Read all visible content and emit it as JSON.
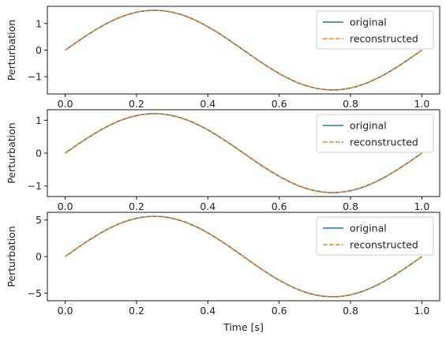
{
  "chart_data": [
    {
      "type": "line",
      "ylabel": "Perturbation",
      "xlabel": "",
      "amplitude": 1.5,
      "xlim": [
        -0.05,
        1.05
      ],
      "ylim": [
        -1.65,
        1.65
      ],
      "xticks": [
        0.0,
        0.2,
        0.4,
        0.6,
        0.8,
        1.0
      ],
      "xtick_labels": [
        "0.0",
        "0.2",
        "0.4",
        "0.6",
        "0.8",
        "1.0"
      ],
      "yticks": [
        -1,
        0,
        1
      ],
      "ytick_labels": [
        "−1",
        "0",
        "1"
      ],
      "legend_position": "top-right",
      "series": [
        {
          "name": "original",
          "style": "solid",
          "color": "#1f77b4"
        },
        {
          "name": "reconstructed",
          "style": "dashed",
          "color": "#ff7f0e"
        }
      ]
    },
    {
      "type": "line",
      "ylabel": "Perturbation",
      "xlabel": "",
      "amplitude": 1.2,
      "xlim": [
        -0.05,
        1.05
      ],
      "ylim": [
        -1.32,
        1.32
      ],
      "xticks": [
        0.0,
        0.2,
        0.4,
        0.6,
        0.8,
        1.0
      ],
      "xtick_labels": [
        "0.0",
        "0.2",
        "0.4",
        "0.6",
        "0.8",
        "1.0"
      ],
      "yticks": [
        -1,
        0,
        1
      ],
      "ytick_labels": [
        "−1",
        "0",
        "1"
      ],
      "legend_position": "top-right",
      "series": [
        {
          "name": "original",
          "style": "solid",
          "color": "#1f77b4"
        },
        {
          "name": "reconstructed",
          "style": "dashed",
          "color": "#ff7f0e"
        }
      ]
    },
    {
      "type": "line",
      "ylabel": "Perturbation",
      "xlabel": "Time [s]",
      "amplitude": 5.5,
      "xlim": [
        -0.05,
        1.05
      ],
      "ylim": [
        -6.05,
        6.05
      ],
      "xticks": [
        0.0,
        0.2,
        0.4,
        0.6,
        0.8,
        1.0
      ],
      "xtick_labels": [
        "0.0",
        "0.2",
        "0.4",
        "0.6",
        "0.8",
        "1.0"
      ],
      "yticks": [
        -5,
        0,
        5
      ],
      "ytick_labels": [
        "−5",
        "0",
        "5"
      ],
      "legend_position": "top-right",
      "series": [
        {
          "name": "original",
          "style": "solid",
          "color": "#1f77b4"
        },
        {
          "name": "reconstructed",
          "style": "dashed",
          "color": "#ff7f0e"
        }
      ]
    }
  ]
}
